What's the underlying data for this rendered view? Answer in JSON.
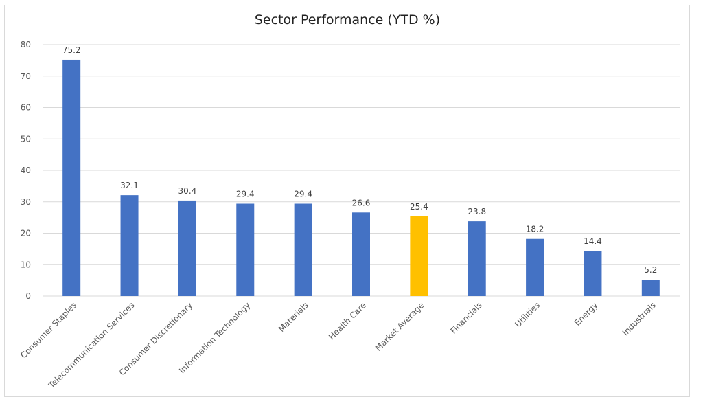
{
  "chart_data": {
    "type": "bar",
    "title": "Sector Performance (YTD %)",
    "xlabel": "",
    "ylabel": "",
    "ylim": [
      0,
      80
    ],
    "yticks": [
      0,
      10,
      20,
      30,
      40,
      50,
      60,
      70,
      80
    ],
    "grid": true,
    "legend": "none",
    "categories": [
      "Consumer Staples",
      "Telecommunication Services",
      "Consumer Discretionary",
      "Information Technology",
      "Materials",
      "Health Care",
      "Market Average",
      "Financials",
      "Utilities",
      "Energy",
      "Industrials"
    ],
    "values": [
      75.2,
      32.1,
      30.4,
      29.4,
      29.4,
      26.6,
      25.4,
      23.8,
      18.2,
      14.4,
      5.2
    ],
    "data_labels": [
      "75.2",
      "32.1",
      "30.4",
      "29.4",
      "29.4",
      "26.6",
      "25.4",
      "23.8",
      "18.2",
      "14.4",
      "5.2"
    ],
    "colors": {
      "bar": "#4472C4",
      "highlight": "#FFC000",
      "grid": "#d9d9d9"
    },
    "highlight_category": "Market Average"
  }
}
